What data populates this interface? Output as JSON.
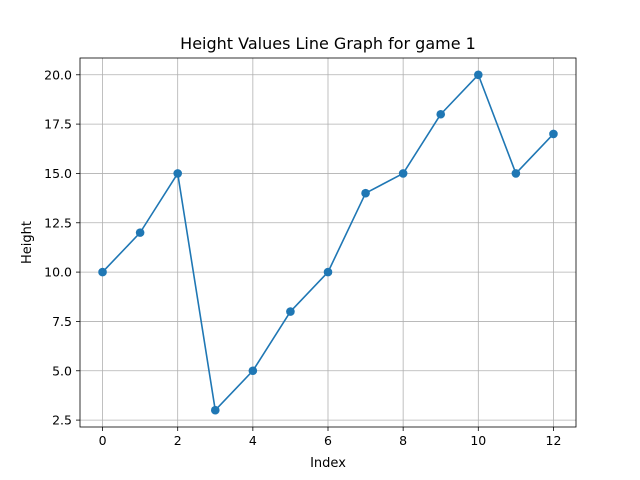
{
  "chart_data": {
    "type": "line",
    "title": "Height Values Line Graph for game 1",
    "xlabel": "Index",
    "ylabel": "Height",
    "x": [
      0,
      1,
      2,
      3,
      4,
      5,
      6,
      7,
      8,
      9,
      10,
      11,
      12
    ],
    "series": [
      {
        "values": [
          10,
          12,
          15,
          3,
          5,
          8,
          10,
          14,
          15,
          18,
          20,
          15,
          17
        ]
      }
    ],
    "xlim": [
      -0.6,
      12.6
    ],
    "ylim": [
      2.15,
      20.85
    ],
    "xticks": [
      0,
      2,
      4,
      6,
      8,
      10,
      12
    ],
    "xtick_labels": [
      "0",
      "2",
      "4",
      "6",
      "8",
      "10",
      "12"
    ],
    "yticks": [
      2.5,
      5.0,
      7.5,
      10.0,
      12.5,
      15.0,
      17.5,
      20.0
    ],
    "ytick_labels": [
      "2.5",
      "5.0",
      "7.5",
      "10.0",
      "12.5",
      "15.0",
      "17.5",
      "20.0"
    ],
    "grid": true,
    "legend": "none",
    "colors": {
      "line": "#1f77b4",
      "marker": "#1f77b4",
      "grid": "#b0b0b0"
    }
  }
}
